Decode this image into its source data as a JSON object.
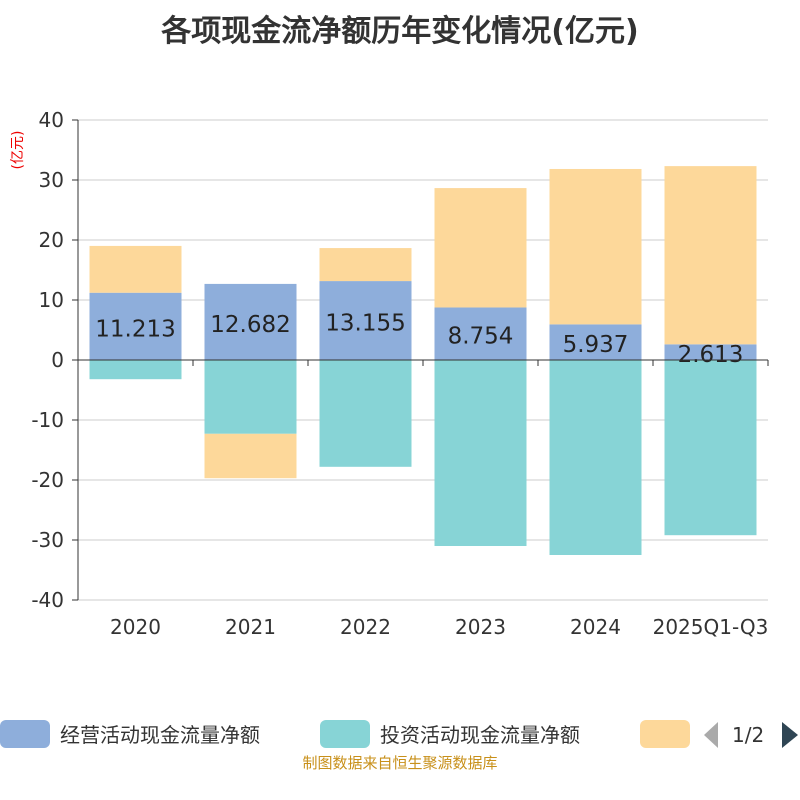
{
  "title": "各项现金流净额历年变化情况(亿元)",
  "source": "制图数据来自恒生聚源数据库",
  "legend_page": "1/2",
  "colors": {
    "operating": "#8eaedb",
    "investing": "#87d4d6",
    "financing": "#fdd89a"
  },
  "chart_data": {
    "type": "bar",
    "stacked": true,
    "title": "各项现金流净额历年变化情况(亿元)",
    "ylabel": "(亿元)",
    "ylim": [
      -40,
      40
    ],
    "yticks": [
      40,
      30,
      20,
      10,
      0,
      -10,
      -20,
      -30,
      -40
    ],
    "categories": [
      "2020",
      "2021",
      "2022",
      "2023",
      "2024",
      "2025Q1-Q3"
    ],
    "series": [
      {
        "name": "经营活动现金流量净额",
        "values": [
          11.213,
          12.682,
          13.155,
          8.754,
          5.937,
          2.613
        ],
        "labels": [
          "11.213",
          "12.682",
          "13.155",
          "8.754",
          "5.937",
          "2.613"
        ]
      },
      {
        "name": "投资活动现金流量净额",
        "values": [
          -3.2,
          -12.3,
          -17.8,
          -31.0,
          -32.5,
          -29.2
        ]
      },
      {
        "name": "",
        "values": [
          7.8,
          -7.4,
          5.5,
          19.9,
          25.9,
          29.7
        ]
      }
    ],
    "legend": [
      "经营活动现金流量净额",
      "投资活动现金流量净额"
    ],
    "legend_position": "bottom",
    "grid": true
  }
}
